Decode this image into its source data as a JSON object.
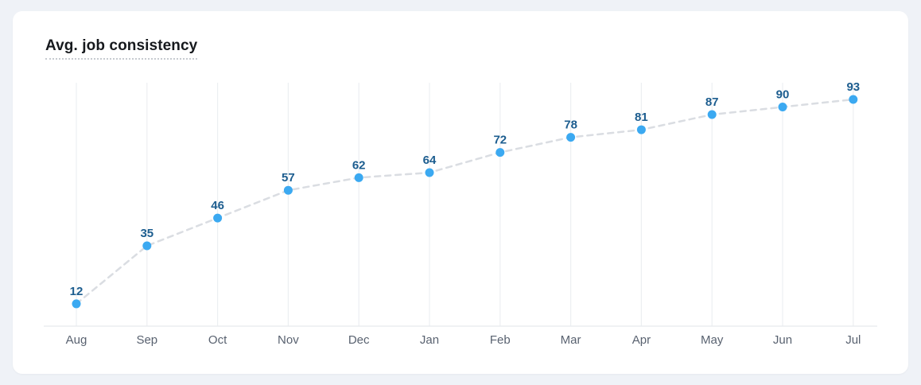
{
  "card": {
    "title": "Avg. job consistency"
  },
  "colors": {
    "page_bg": "#EFF2F7",
    "card_bg": "#FFFFFF",
    "title_text": "#16191D",
    "title_underline": "#C6CAD0",
    "gridline": "#ECEFF2",
    "baseline": "#E7EAED",
    "trend_line": "#DADDE2",
    "dot_fill": "#3BA9F1",
    "value_label": "#1C5D8F",
    "month_label": "#596270"
  },
  "chart_data": {
    "type": "line",
    "title": "Avg. job consistency",
    "categories": [
      "Aug",
      "Sep",
      "Oct",
      "Nov",
      "Dec",
      "Jan",
      "Feb",
      "Mar",
      "Apr",
      "May",
      "Jun",
      "Jul"
    ],
    "values": [
      12,
      35,
      46,
      57,
      62,
      64,
      72,
      78,
      81,
      87,
      90,
      93
    ],
    "xlabel": "",
    "ylabel": "",
    "ylim": [
      0,
      100
    ],
    "line_style": "dashed",
    "point_labels": true,
    "grid": "vertical-only",
    "legend": "none"
  }
}
